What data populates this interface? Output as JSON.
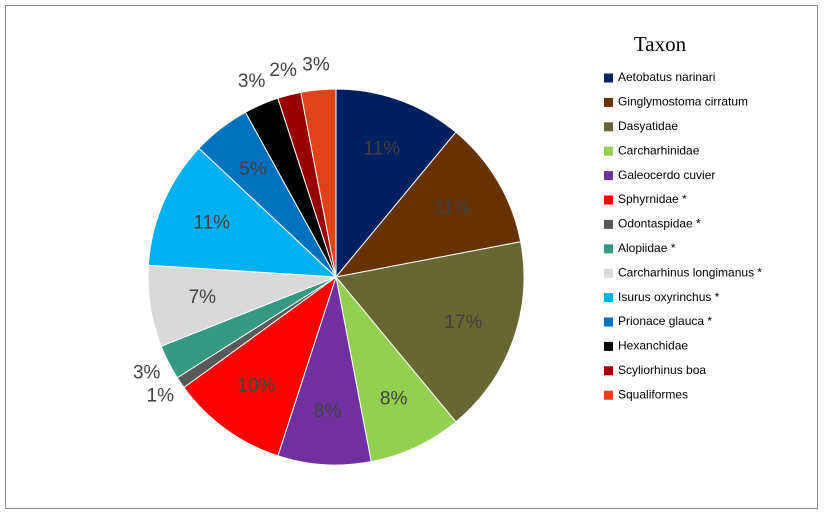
{
  "chart_data": {
    "type": "pie",
    "legend_title": "Taxon",
    "categories": [
      "Aetobatus narinari",
      "Ginglymostoma cirratum",
      "Dasyatidae",
      "Carcharhinidae",
      "Galeocerdo cuvier",
      "Sphyrnidae *",
      "Odontaspidae *",
      "Alopiidae *",
      "Carcharhinus longimanus *",
      "Isurus oxyrinchus *",
      "Prionace glauca *",
      "Hexanchidae",
      "Scyliorhinus boa",
      "Squaliformes"
    ],
    "values": [
      11,
      11,
      17,
      8,
      8,
      10,
      1,
      3,
      7,
      11,
      5,
      3,
      2,
      3
    ],
    "value_labels": [
      "11%",
      "11%",
      "17%",
      "8%",
      "8%",
      "10%",
      "1%",
      "3%",
      "7%",
      "11%",
      "5%",
      "3%",
      "2%",
      "3%"
    ],
    "colors": [
      "#002060",
      "#663300",
      "#676733",
      "#92d050",
      "#7030a0",
      "#ff0000",
      "#595959",
      "#339980",
      "#d9d9d9",
      "#00b0f0",
      "#0070c0",
      "#000000",
      "#990000",
      "#e0431a"
    ],
    "legend": "right"
  }
}
